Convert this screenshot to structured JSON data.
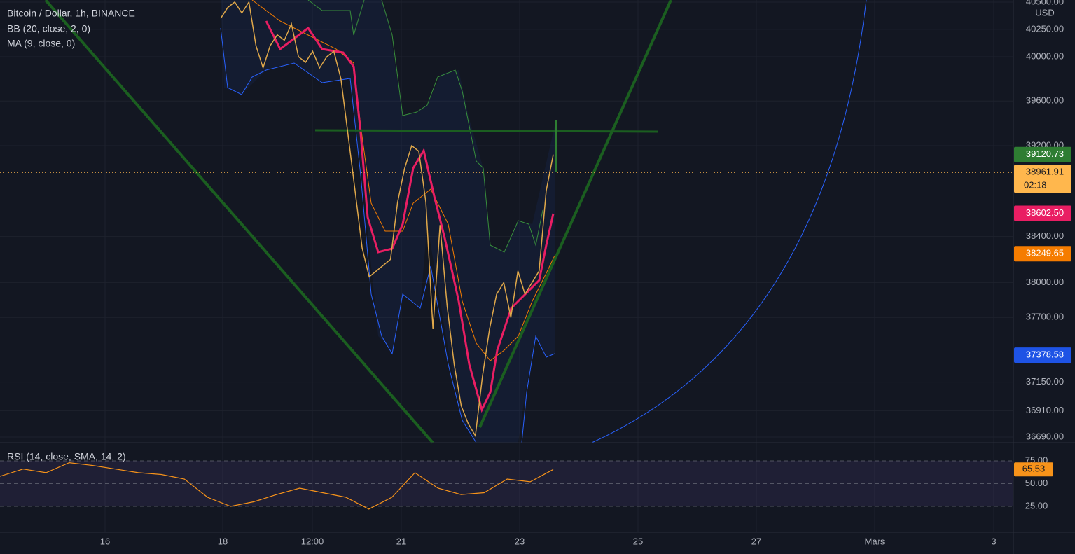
{
  "header": {
    "symbol": "Bitcoin / Dollar, 1h, BINANCE",
    "indicators": [
      "BB (20, close, 2, 0)",
      "MA (9, close, 0)"
    ]
  },
  "price_pane": {
    "currency": "USD",
    "log_scale": true,
    "grid": true,
    "ylim": [
      36643,
      40519
    ],
    "yticks": [
      {
        "value": 40500,
        "label": "40500.00"
      },
      {
        "value": 40250,
        "label": "40250.00"
      },
      {
        "value": 40000,
        "label": "40000.00"
      },
      {
        "value": 39600,
        "label": "39600.00"
      },
      {
        "value": 39200,
        "label": "39200.00"
      },
      {
        "value": 38400,
        "label": "38400.00"
      },
      {
        "value": 38000,
        "label": "38000.00"
      },
      {
        "value": 37700,
        "label": "37700.00"
      },
      {
        "value": 37150,
        "label": "37150.00"
      },
      {
        "value": 36910,
        "label": "36910.00"
      },
      {
        "value": 36690,
        "label": "36690.00"
      }
    ],
    "price_tags": [
      {
        "value": 39120.73,
        "label": "39120.73",
        "color": "#2e7d32"
      },
      {
        "value": 38961.91,
        "label": "38961.91",
        "color": "#ffb74d",
        "countdown": "02:18"
      },
      {
        "value": 38602.5,
        "label": "38602.50",
        "color": "#e91e63"
      },
      {
        "value": 38249.65,
        "label": "38249.65",
        "color": "#f57c00"
      },
      {
        "value": 37378.58,
        "label": "37378.58",
        "color": "#1e53e5"
      }
    ],
    "close_color": "#e0a84a",
    "closes": [
      40350,
      40450,
      40500,
      40400,
      40500,
      40100,
      39900,
      40100,
      40200,
      40150,
      40300,
      40000,
      39950,
      40050,
      39900,
      40000,
      40050,
      39800,
      39300,
      38800,
      38300,
      38050,
      38100,
      38150,
      38200,
      38700,
      39000,
      39200,
      39150,
      38700,
      37600,
      38500,
      37800,
      37300,
      36950,
      36800,
      36700,
      37200,
      37600,
      37900,
      38000,
      37700,
      38100,
      37900,
      38000,
      38100,
      38800,
      39120.73
    ]
  },
  "rsi_pane": {
    "title": "RSI (14, close, SMA, 14, 2)",
    "ylim": [
      -3.5,
      95
    ],
    "yticks": [
      {
        "value": 75,
        "label": "75.00"
      },
      {
        "value": 50,
        "label": "50.00"
      },
      {
        "value": 25,
        "label": "25.00"
      }
    ],
    "color": "#f7931a",
    "values": [
      58,
      66,
      62,
      73,
      70,
      66,
      62,
      60,
      55,
      35,
      25,
      30,
      38,
      45,
      40,
      35,
      22,
      35,
      62,
      45,
      38,
      40,
      55,
      52,
      65.53
    ],
    "last": 65.53,
    "last_color": "#f7931a"
  },
  "time_axis": {
    "labels": [
      "16",
      "18",
      "12:00",
      "21",
      "23",
      "25",
      "27",
      "Mars",
      "3"
    ]
  }
}
